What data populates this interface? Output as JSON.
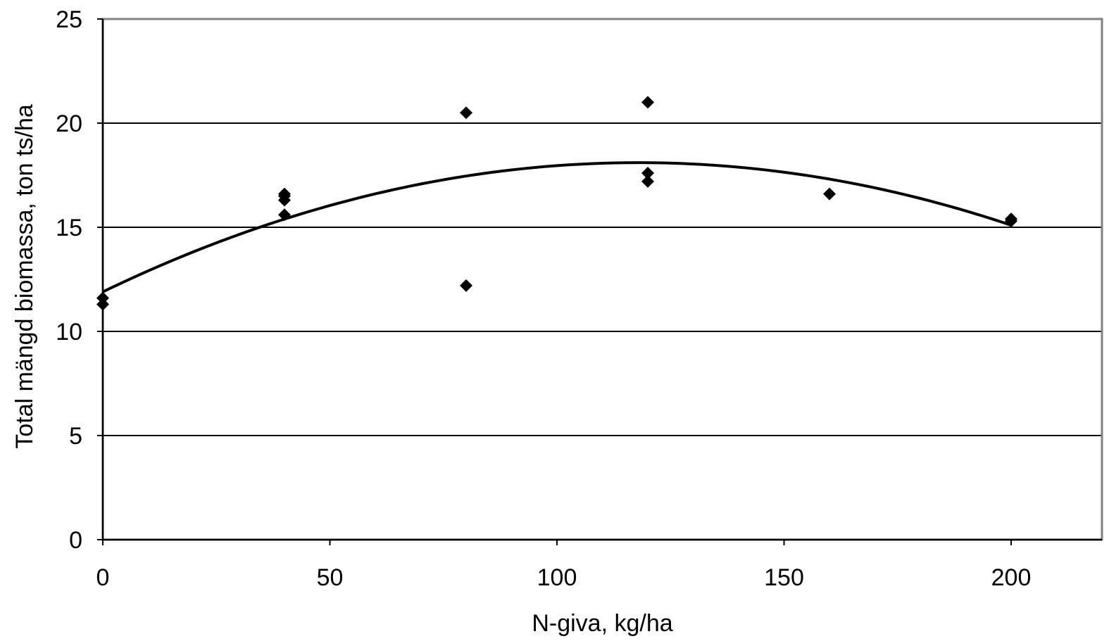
{
  "chart_data": {
    "type": "scatter",
    "title": "",
    "xlabel": "N-giva, kg/ha",
    "ylabel": "Total mängd biomassa, ton ts/ha",
    "xlim": [
      0,
      220
    ],
    "ylim": [
      0,
      25
    ],
    "xticks": [
      0,
      50,
      100,
      150,
      200
    ],
    "yticks": [
      0,
      5,
      10,
      15,
      20,
      25
    ],
    "xtick_labels": [
      "0",
      "50",
      "100",
      "150",
      "200"
    ],
    "ytick_labels": [
      "0",
      "5",
      "10",
      "15",
      "20",
      "25"
    ],
    "grid": "horizontal",
    "legend": "none",
    "colors": {
      "marker": "#000000",
      "trendline": "#000000",
      "grid": "#000000",
      "frame": "#808080"
    },
    "points": [
      {
        "x": 0,
        "y": 11.3
      },
      {
        "x": 0,
        "y": 11.6
      },
      {
        "x": 40,
        "y": 15.6
      },
      {
        "x": 40,
        "y": 16.3
      },
      {
        "x": 40,
        "y": 16.5
      },
      {
        "x": 40,
        "y": 16.6
      },
      {
        "x": 80,
        "y": 20.5
      },
      {
        "x": 80,
        "y": 12.2
      },
      {
        "x": 120,
        "y": 21.0
      },
      {
        "x": 120,
        "y": 17.6
      },
      {
        "x": 120,
        "y": 17.2
      },
      {
        "x": 160,
        "y": 16.6
      },
      {
        "x": 200,
        "y": 15.3
      },
      {
        "x": 200,
        "y": 15.4
      }
    ],
    "trendline": {
      "type": "polynomial",
      "order": 2,
      "x": [
        0,
        40,
        80,
        120,
        160,
        200
      ],
      "y": [
        11.9,
        15.6,
        17.5,
        18.1,
        17.3,
        15.1
      ]
    }
  }
}
